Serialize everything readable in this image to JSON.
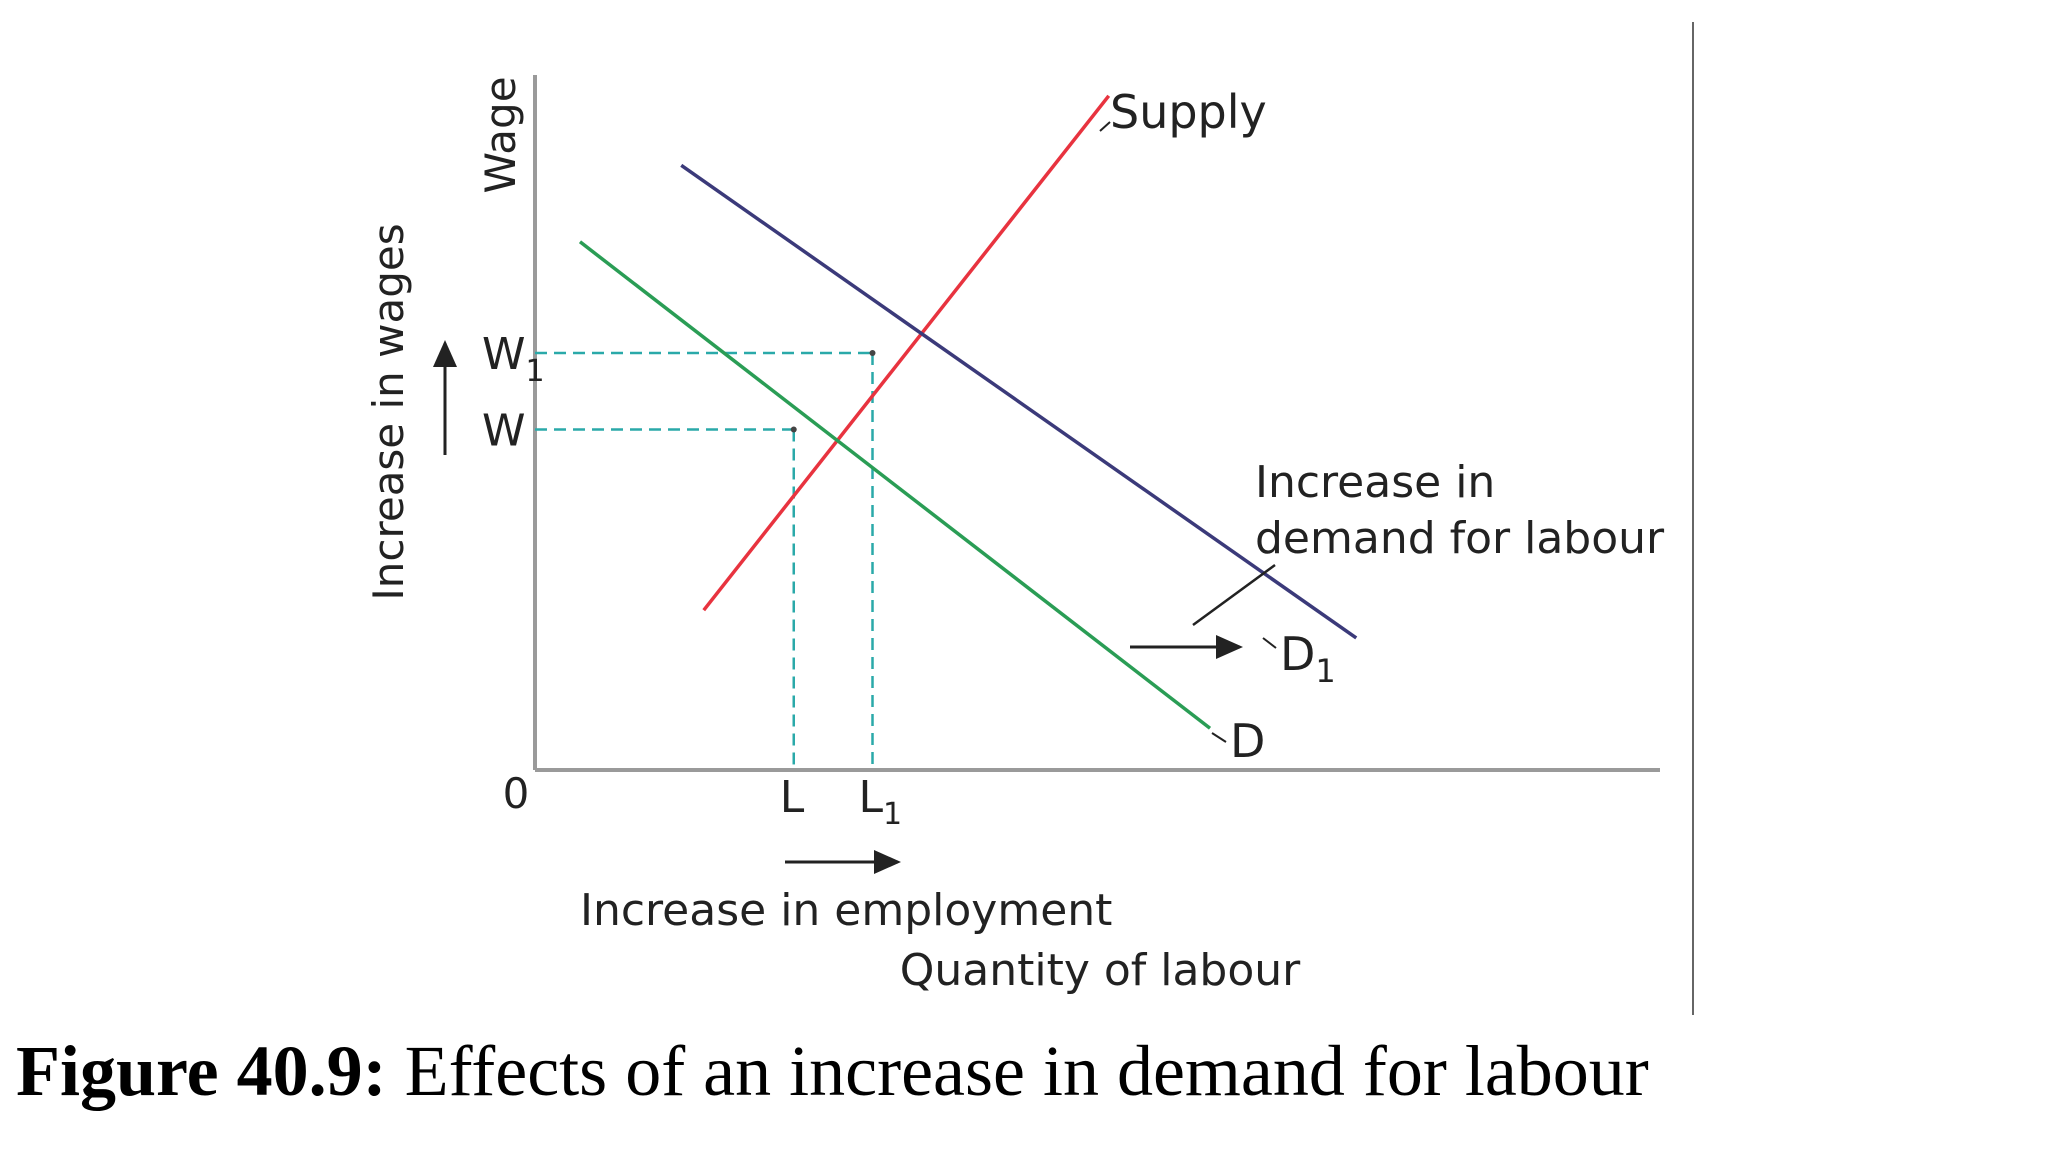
{
  "chart_data": {
    "type": "line",
    "title": "",
    "xlabel": "Quantity of labour",
    "ylabel": "Wage",
    "origin_label": "0",
    "xlim": [
      0,
      10
    ],
    "ylim": [
      0,
      10
    ],
    "grid": false,
    "series": [
      {
        "name": "Supply",
        "color": "#e8333f",
        "x": [
          1.5,
          5.1
        ],
        "y": [
          2.3,
          9.7
        ]
      },
      {
        "name": "D1",
        "color": "#3b3a7a",
        "x": [
          1.3,
          7.3
        ],
        "y": [
          8.7,
          1.9
        ]
      },
      {
        "name": "D",
        "color": "#2a9d55",
        "x": [
          0.4,
          6.0
        ],
        "y": [
          7.6,
          0.6
        ]
      }
    ],
    "equilibria": [
      {
        "wage_label": "W",
        "quantity_label": "L",
        "x": 2.3,
        "y": 4.9
      },
      {
        "wage_label": "W1",
        "quantity_label": "L1",
        "x": 3.0,
        "y": 6.0
      }
    ],
    "guide_color": "#2aa9a9",
    "x_ticks": [
      {
        "label": "L",
        "sub": "",
        "x": 2.3
      },
      {
        "label": "L",
        "sub": "1",
        "x": 3.0
      }
    ],
    "y_ticks": [
      {
        "label": "W",
        "sub": "",
        "y": 4.9
      },
      {
        "label": "W",
        "sub": "1",
        "y": 6.0
      }
    ],
    "annotations": {
      "supply": "Supply",
      "demand": "D",
      "demand_new": {
        "text": "D",
        "sub": "1"
      },
      "increase_demand": [
        "Increase in",
        "demand for labour"
      ],
      "increase_wages": "Increase in wages",
      "increase_employment": "Increase in employment"
    }
  },
  "caption": {
    "label": "Figure 40.9:",
    "text": " Effects of an increase in demand for labour"
  }
}
